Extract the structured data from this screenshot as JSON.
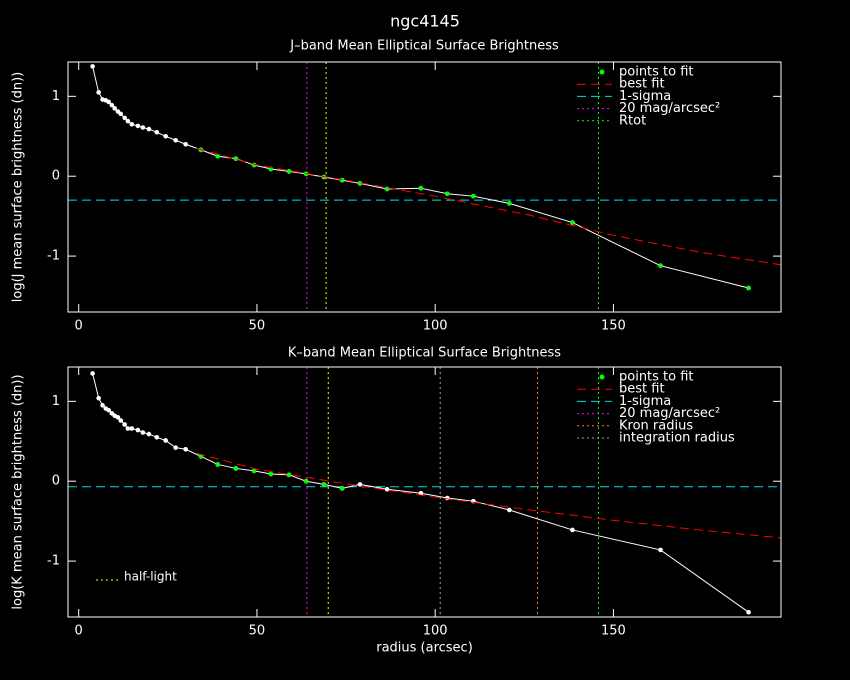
{
  "title": "ngc4145",
  "chart_data": [
    {
      "type": "line",
      "title": "J–band Mean Elliptical Surface Brightness",
      "ylabel": "log(J mean surface brightness (dn))",
      "xlim": [
        -3,
        197
      ],
      "ylim": [
        -1.7,
        1.43
      ],
      "xticks": [
        0,
        50,
        100,
        150
      ],
      "yticks": [
        -1,
        0,
        1
      ],
      "legend": "upper right",
      "series": [
        {
          "color": "#ffffff",
          "line": "solid",
          "marker": true,
          "x": [
            3.9,
            5.6,
            6.7,
            7.6,
            8.4,
            9.3,
            10.1,
            11,
            11.8,
            12.9,
            13.8,
            14.9,
            16.6,
            18,
            19.7,
            21.9,
            24.4,
            27.2,
            30,
            34.3,
            39,
            44.1,
            49.2,
            53.9,
            59,
            63.8,
            68.8,
            73.9,
            78.9,
            86.5,
            96,
            103.4,
            110.7,
            120.8,
            138.5,
            163.2,
            187.9
          ],
          "values": [
            1.375,
            1.05,
            0.96,
            0.95,
            0.93,
            0.89,
            0.85,
            0.81,
            0.78,
            0.73,
            0.69,
            0.65,
            0.63,
            0.61,
            0.59,
            0.55,
            0.5,
            0.45,
            0.4,
            0.33,
            0.25,
            0.22,
            0.14,
            0.09,
            0.06,
            0.03,
            -0.01,
            -0.05,
            -0.09,
            -0.16,
            -0.15,
            -0.22,
            -0.25,
            -0.34,
            -0.58,
            -1.12,
            -1.4
          ]
        },
        {
          "name": "points to fit",
          "color": "#00ff00",
          "line": "none",
          "marker": true,
          "x": [
            34.3,
            39,
            44.1,
            49.2,
            53.9,
            59,
            63.8,
            68.8,
            73.9,
            78.9,
            86.5,
            96,
            103.4,
            110.7,
            120.8,
            138.5,
            163.2,
            187.9
          ],
          "values": [
            0.33,
            0.25,
            0.22,
            0.14,
            0.09,
            0.06,
            0.03,
            -0.01,
            -0.05,
            -0.09,
            -0.16,
            -0.15,
            -0.22,
            -0.25,
            -0.34,
            -0.58,
            -1.12,
            -1.4
          ]
        },
        {
          "name": "best fit",
          "color": "#ff0000",
          "line": "dashed",
          "marker": false,
          "x": [
            33,
            50,
            76,
            100,
            126.7,
            150,
            174,
            197
          ],
          "values": [
            0.35,
            0.14,
            -0.06,
            -0.25,
            -0.49,
            -0.74,
            -0.95,
            -1.11
          ]
        }
      ],
      "hlines": [
        {
          "name": "1-sigma",
          "color": "#00e0e0",
          "value": -0.3
        }
      ],
      "vlines": [
        {
          "name": "20 mag/arcsec²",
          "color": "#ff00ff",
          "value": 64
        },
        {
          "name": "Rtot",
          "color": "#00ff00",
          "value": 145.8
        },
        {
          "color": "#ffff00",
          "value": 69.4
        }
      ]
    },
    {
      "type": "line",
      "title": "K–band Mean Elliptical Surface Brightness",
      "ylabel": "log(K mean surface brightness (dn))",
      "xlabel": "radius (arcsec)",
      "xlim": [
        -3,
        197
      ],
      "ylim": [
        -1.7,
        1.43
      ],
      "xticks": [
        0,
        50,
        100,
        150
      ],
      "yticks": [
        -1,
        0,
        1
      ],
      "legend": "upper right",
      "annotation": {
        "text": "half-light",
        "color": "#ffff00"
      },
      "series": [
        {
          "color": "#ffffff",
          "line": "solid",
          "marker": true,
          "x": [
            3.9,
            5.6,
            6.7,
            7.6,
            8.4,
            9.3,
            10.1,
            11,
            11.8,
            12.9,
            13.8,
            14.9,
            16.6,
            18,
            19.7,
            21.9,
            24.4,
            27.2,
            30,
            34.3,
            39,
            44.1,
            49.2,
            53.9,
            59,
            63.8,
            68.8,
            73.9,
            78.9,
            86.5,
            96,
            103.4,
            110.7,
            120.8,
            138.5,
            163.2,
            187.9
          ],
          "values": [
            1.35,
            1.04,
            0.95,
            0.91,
            0.89,
            0.85,
            0.82,
            0.8,
            0.76,
            0.71,
            0.66,
            0.66,
            0.64,
            0.61,
            0.59,
            0.55,
            0.51,
            0.42,
            0.4,
            0.31,
            0.21,
            0.16,
            0.13,
            0.09,
            0.08,
            0.0,
            -0.04,
            -0.09,
            -0.04,
            -0.1,
            -0.15,
            -0.21,
            -0.25,
            -0.36,
            -0.61,
            -0.86,
            -1.64
          ]
        },
        {
          "name": "points to fit",
          "color": "#00ff00",
          "line": "none",
          "marker": true,
          "x": [
            34.3,
            39,
            44.1,
            49.2,
            53.9,
            59,
            63.8,
            68.8,
            73.9
          ],
          "values": [
            0.31,
            0.21,
            0.16,
            0.13,
            0.09,
            0.08,
            0.0,
            -0.04,
            -0.09
          ]
        },
        {
          "name": "best fit",
          "color": "#ff0000",
          "line": "dashed",
          "marker": false,
          "x": [
            33,
            50,
            76,
            100,
            126.7,
            150,
            174,
            197
          ],
          "values": [
            0.35,
            0.15,
            -0.04,
            -0.2,
            -0.36,
            -0.49,
            -0.61,
            -0.71
          ]
        }
      ],
      "hlines": [
        {
          "name": "1-sigma",
          "color": "#00e0e0",
          "value": -0.07
        }
      ],
      "vlines": [
        {
          "name": "20 mag/arcsec²",
          "color": "#ff00ff",
          "value": 64
        },
        {
          "name": "Kron radius",
          "color": "#ff8000",
          "value": 128.7
        },
        {
          "name": "integration radius",
          "color": "#9aa89a",
          "value": 101.4
        },
        {
          "color": "#ffff00",
          "value": 70
        },
        {
          "color": "#00ff00",
          "value": 145.8
        }
      ]
    }
  ]
}
